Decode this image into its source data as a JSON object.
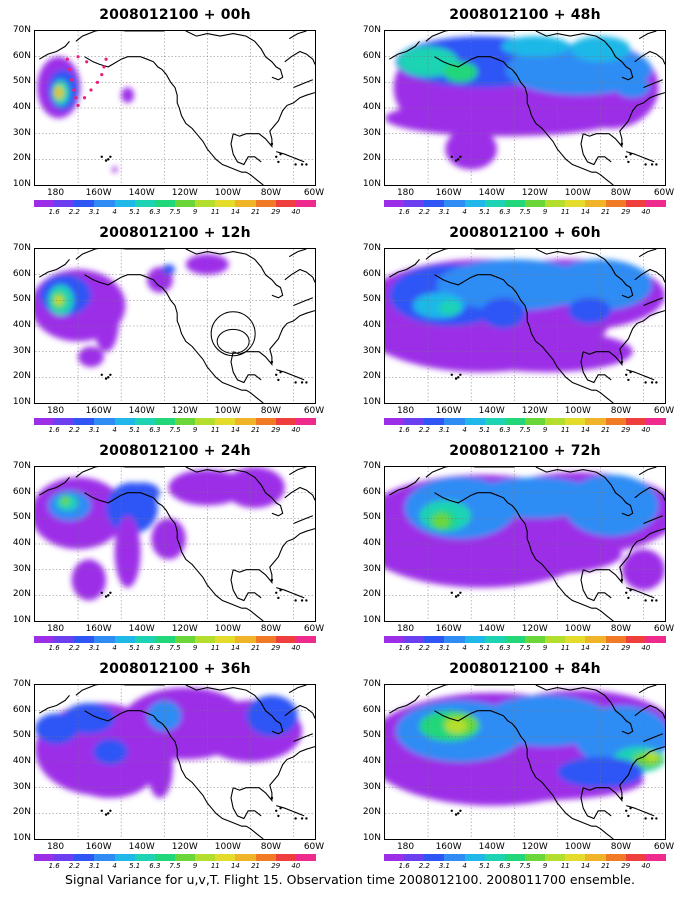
{
  "panels": [
    {
      "title": "2008012100 + 00h"
    },
    {
      "title": "2008012100 + 48h"
    },
    {
      "title": "2008012100 + 12h"
    },
    {
      "title": "2008012100 + 60h"
    },
    {
      "title": "2008012100 + 24h"
    },
    {
      "title": "2008012100 + 72h"
    },
    {
      "title": "2008012100 + 36h"
    },
    {
      "title": "2008012100 + 84h"
    }
  ],
  "axes": {
    "lat_labels": [
      "70N",
      "60N",
      "50N",
      "40N",
      "30N",
      "20N",
      "10N"
    ],
    "lon_labels": [
      "180",
      "160W",
      "140W",
      "120W",
      "100W",
      "80W",
      "60W"
    ]
  },
  "colorbar": {
    "levels": [
      "1.6",
      "2.2",
      "3.1",
      "4",
      "5.1",
      "6.3",
      "7.5",
      "9",
      "11",
      "14",
      "21",
      "29",
      "40"
    ],
    "colors": [
      "#9c2ee8",
      "#6b3ef0",
      "#2f55f5",
      "#2f8cf5",
      "#1fb8e8",
      "#1ed3b4",
      "#22d67a",
      "#6ad63a",
      "#b4de2e",
      "#e4dc2a",
      "#f0b428",
      "#f07a26",
      "#ee3e3e",
      "#ee2a8c"
    ]
  },
  "footer": "Signal Variance for u,v,T. Flight 15. Observation time 2008012100. 2008011700 ensemble."
}
